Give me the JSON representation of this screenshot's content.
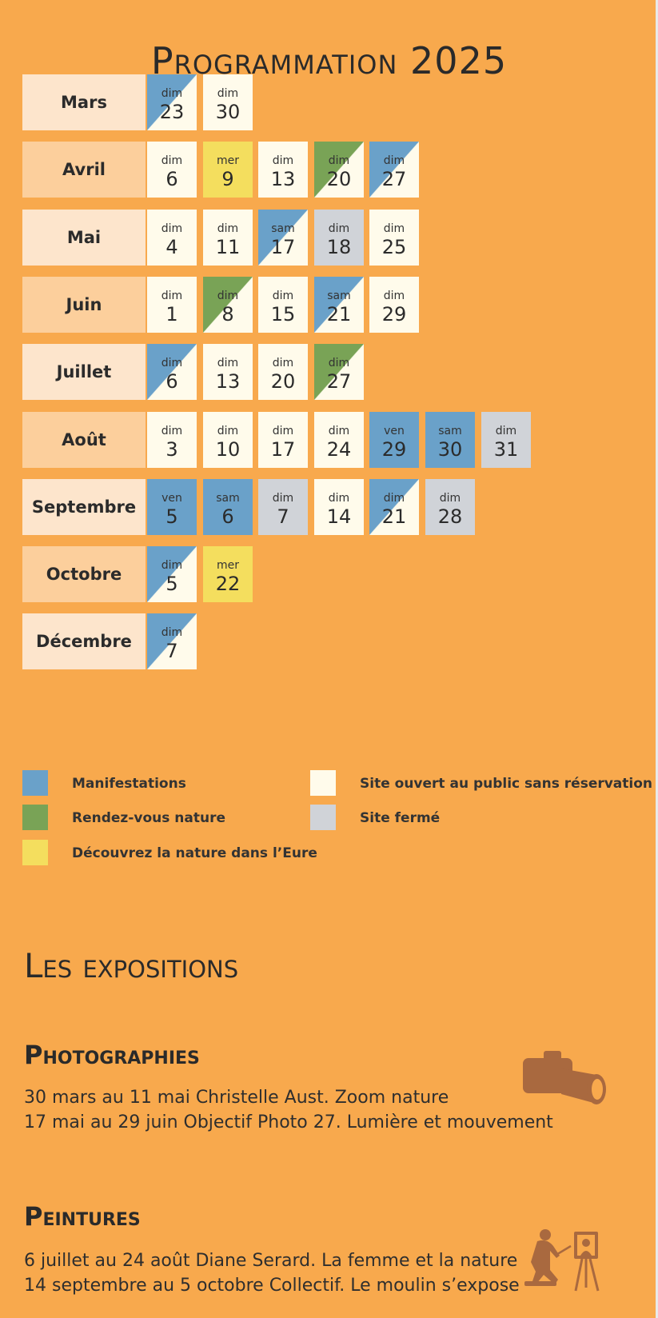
{
  "title": "Programmation 2025",
  "months": [
    {
      "name": "Mars",
      "days": [
        {
          "day": "dim",
          "date": "23",
          "kind": "half-blue"
        },
        {
          "day": "dim",
          "date": "30",
          "kind": "white"
        }
      ]
    },
    {
      "name": "Avril",
      "days": [
        {
          "day": "dim",
          "date": "6",
          "kind": "white"
        },
        {
          "day": "mer",
          "date": "9",
          "kind": "yellow"
        },
        {
          "day": "dim",
          "date": "13",
          "kind": "white"
        },
        {
          "day": "dim",
          "date": "20",
          "kind": "half-green"
        },
        {
          "day": "dim",
          "date": "27",
          "kind": "half-blue"
        }
      ]
    },
    {
      "name": "Mai",
      "days": [
        {
          "day": "dim",
          "date": "4",
          "kind": "white"
        },
        {
          "day": "dim",
          "date": "11",
          "kind": "white"
        },
        {
          "day": "sam",
          "date": "17",
          "kind": "half-blue"
        },
        {
          "day": "dim",
          "date": "18",
          "kind": "grey"
        },
        {
          "day": "dim",
          "date": "25",
          "kind": "white"
        }
      ]
    },
    {
      "name": "Juin",
      "days": [
        {
          "day": "dim",
          "date": "1",
          "kind": "white"
        },
        {
          "day": "dim",
          "date": "8",
          "kind": "half-green"
        },
        {
          "day": "dim",
          "date": "15",
          "kind": "white"
        },
        {
          "day": "sam",
          "date": "21",
          "kind": "half-blue"
        },
        {
          "day": "dim",
          "date": "29",
          "kind": "white"
        }
      ]
    },
    {
      "name": "Juillet",
      "days": [
        {
          "day": "dim",
          "date": "6",
          "kind": "half-blue"
        },
        {
          "day": "dim",
          "date": "13",
          "kind": "white"
        },
        {
          "day": "dim",
          "date": "20",
          "kind": "white"
        },
        {
          "day": "dim",
          "date": "27",
          "kind": "half-green"
        }
      ]
    },
    {
      "name": "Août",
      "days": [
        {
          "day": "dim",
          "date": "3",
          "kind": "white"
        },
        {
          "day": "dim",
          "date": "10",
          "kind": "white"
        },
        {
          "day": "dim",
          "date": "17",
          "kind": "white"
        },
        {
          "day": "dim",
          "date": "24",
          "kind": "white"
        },
        {
          "day": "ven",
          "date": "29",
          "kind": "blue"
        },
        {
          "day": "sam",
          "date": "30",
          "kind": "blue"
        },
        {
          "day": "dim",
          "date": "31",
          "kind": "grey"
        }
      ]
    },
    {
      "name": "Septembre",
      "days": [
        {
          "day": "ven",
          "date": "5",
          "kind": "blue"
        },
        {
          "day": "sam",
          "date": "6",
          "kind": "blue"
        },
        {
          "day": "dim",
          "date": "7",
          "kind": "grey"
        },
        {
          "day": "dim",
          "date": "14",
          "kind": "white"
        },
        {
          "day": "dim",
          "date": "21",
          "kind": "half-blue"
        },
        {
          "day": "dim",
          "date": "28",
          "kind": "grey"
        }
      ]
    },
    {
      "name": "Octobre",
      "days": [
        {
          "day": "dim",
          "date": "5",
          "kind": "half-blue"
        },
        {
          "day": "mer",
          "date": "22",
          "kind": "yellow"
        }
      ]
    },
    {
      "name": "Décembre",
      "days": [
        {
          "day": "dim",
          "date": "7",
          "kind": "half-blue"
        }
      ]
    }
  ],
  "legend": [
    {
      "label": "Manifestations",
      "color": "#6aa1c9"
    },
    {
      "label": "Rendez-vous nature",
      "color": "#79a356"
    },
    {
      "label": "Découvrez la nature dans l’Eure",
      "color": "#f4de5e"
    },
    {
      "label": "Site ouvert au public sans réservation",
      "color": "#fffbeb"
    },
    {
      "label": "Site fermé",
      "color": "#d0d3d8"
    }
  ],
  "colors": {
    "background": "#f8a94d",
    "manifestations": "#6aa1c9",
    "rendez_vous_nature": "#79a356",
    "decouvrez": "#f4de5e",
    "ouvert": "#fffbeb",
    "ferme": "#d0d3d8",
    "icon": "#a9693f"
  },
  "expositions": {
    "title": "Les expositions",
    "photographies": {
      "title": "Photographies",
      "icon": "camera-icon",
      "lines": [
        "30 mars au 11 mai Christelle Aust. Zoom nature",
        "17 mai au 29 juin Objectif Photo 27. Lumière et mouvement"
      ]
    },
    "peintures": {
      "title": "Peintures",
      "icon": "painter-easel-icon",
      "lines": [
        "6 juillet au 24 août Diane Serard. La femme et la nature",
        "14 septembre au 5 octobre Collectif. Le moulin s’expose"
      ]
    }
  }
}
